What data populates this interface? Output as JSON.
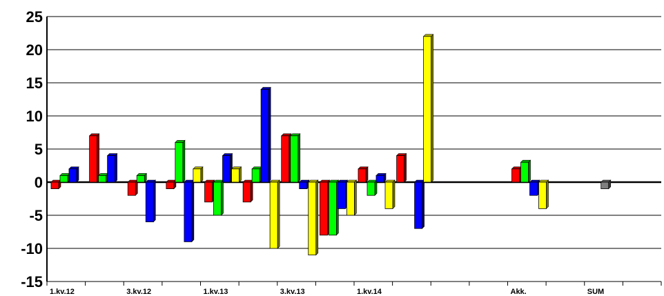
{
  "chart_data": {
    "type": "bar",
    "title": "",
    "xlabel": "",
    "ylabel": "",
    "ylim": [
      -15,
      25
    ],
    "yticks": [
      25,
      20,
      15,
      10,
      5,
      0,
      -5,
      -10,
      -15
    ],
    "grid": true,
    "legend": "none",
    "categories": [
      "1.kv.12",
      "",
      "3.kv.12",
      "",
      "1.kv.13",
      "",
      "3.kv.13",
      "",
      "1.kv.14",
      "",
      "",
      "",
      "Akk.",
      "",
      "SUM",
      ""
    ],
    "series": [
      {
        "color": "#ff0000",
        "values": [
          -1,
          7,
          -2,
          -1,
          -3,
          -3,
          7,
          -8,
          2,
          4,
          null,
          null,
          2,
          null,
          null,
          null
        ]
      },
      {
        "color": "#00ff00",
        "values": [
          1,
          1,
          1,
          6,
          -5,
          2,
          7,
          -8,
          -2,
          null,
          null,
          null,
          3,
          null,
          null,
          null
        ]
      },
      {
        "color": "#0000ff",
        "values": [
          2,
          4,
          -6,
          -9,
          4,
          14,
          -1,
          -4,
          1,
          -7,
          null,
          null,
          -2,
          null,
          null,
          null
        ]
      },
      {
        "color": "#ffff00",
        "values": [
          null,
          null,
          null,
          2,
          2,
          -10,
          -11,
          -5,
          -4,
          22,
          null,
          null,
          -4,
          null,
          null,
          null
        ]
      },
      {
        "color": "#808080",
        "values": [
          null,
          null,
          null,
          null,
          null,
          null,
          null,
          null,
          null,
          null,
          null,
          null,
          null,
          null,
          -1,
          null
        ]
      }
    ]
  }
}
